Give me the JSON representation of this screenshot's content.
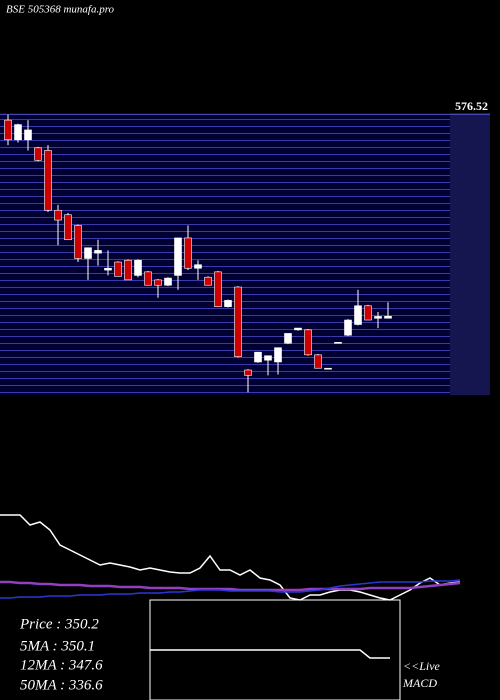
{
  "title": "BSE 505368 munafa.pro",
  "legend": [
    "Price  : 350.2",
    "5MA : 350.1",
    "12MA : 347.6",
    "50MA : 336.6"
  ],
  "macd_label": [
    "<<Live",
    "MACD"
  ],
  "chart_data": [
    {
      "type": "candlestick",
      "categories": [
        null,
        null,
        null,
        null,
        null,
        null,
        null,
        null,
        null,
        null,
        null,
        null,
        null,
        null,
        null,
        null,
        null,
        null,
        null,
        null,
        null,
        null,
        null,
        null,
        null,
        null,
        null,
        null,
        null,
        null,
        null,
        null,
        null,
        null,
        null,
        null,
        null,
        null,
        null
      ],
      "open": [
        570,
        548,
        548,
        539,
        536,
        469,
        464,
        452,
        415,
        421,
        402,
        411,
        413,
        396,
        400,
        391,
        385,
        396,
        438,
        404,
        394,
        400,
        361,
        383,
        290,
        299,
        301,
        299,
        320,
        335,
        335,
        307,
        292,
        321,
        329,
        341,
        362,
        348,
        348
      ],
      "high": [
        576,
        566,
        570,
        540,
        542,
        475,
        466,
        453,
        427,
        436,
        424,
        412,
        414,
        414,
        401,
        392,
        394,
        438,
        452,
        413,
        395,
        401,
        369,
        384,
        291,
        310,
        306,
        315,
        331,
        337,
        336,
        308,
        292,
        321,
        347,
        380,
        363,
        355,
        366
      ],
      "low": [
        542,
        545,
        536,
        524,
        467,
        430,
        436,
        411,
        391,
        407,
        396,
        395,
        391,
        394,
        385,
        371,
        384,
        380,
        402,
        391,
        385,
        361,
        360,
        304,
        265,
        298,
        284,
        285,
        319,
        334,
        306,
        292,
        292,
        321,
        328,
        340,
        346,
        337,
        348
      ],
      "close": [
        548,
        565,
        559,
        525,
        469,
        458,
        436,
        415,
        427,
        424,
        404,
        395,
        391,
        413,
        385,
        385,
        393,
        438,
        404,
        408,
        385,
        361,
        368,
        305,
        284,
        310,
        306,
        315,
        331,
        337,
        307,
        292,
        292,
        321,
        346,
        362,
        346,
        350,
        350.2
      ],
      "up_color": "#ffffff",
      "down_color": "#cc0000",
      "ylim": [
        262,
        578
      ],
      "yticks": [
        {
          "value": 576.52,
          "label": "576.52"
        }
      ]
    },
    {
      "type": "line",
      "series": [
        {
          "name": null,
          "color": "#ffffff",
          "values": [
            85,
            85,
            85,
            75,
            78,
            70,
            55,
            50,
            45,
            40,
            35,
            37,
            35,
            33,
            30,
            32,
            30,
            28,
            27,
            27,
            32,
            44,
            30,
            30,
            25,
            30,
            22,
            20,
            15,
            2,
            0,
            5,
            5,
            8,
            10,
            10,
            8,
            5,
            2,
            0,
            5,
            10,
            17,
            22,
            15,
            17,
            18
          ]
        },
        {
          "name": null,
          "color": "#9040c0",
          "values": [
            18,
            18,
            17,
            17,
            16,
            16,
            15,
            15,
            15,
            14,
            14,
            14,
            13,
            13,
            13,
            12,
            12,
            12,
            12,
            11,
            11,
            11,
            11,
            11,
            10,
            10,
            10,
            10,
            10,
            10,
            10,
            11,
            11,
            11,
            11,
            11,
            11,
            12,
            12,
            12,
            12,
            12,
            13,
            14,
            15,
            16,
            17
          ]
        },
        {
          "name": null,
          "color": "#2838d8",
          "values": [
            2,
            2,
            3,
            3,
            3,
            4,
            4,
            4,
            5,
            5,
            5,
            6,
            6,
            6,
            7,
            7,
            7,
            8,
            8,
            9,
            10,
            10,
            10,
            9,
            9,
            9,
            9,
            9,
            8,
            8,
            8,
            9,
            10,
            12,
            14,
            15,
            16,
            17,
            18,
            18,
            18,
            18,
            18,
            19,
            19,
            19,
            20
          ]
        }
      ],
      "ylim": [
        0,
        85
      ]
    },
    {
      "type": "line",
      "series": [
        {
          "name": null,
          "color": "#ffffff",
          "values": [
            0,
            0,
            0,
            0,
            0,
            0,
            0,
            0,
            0,
            0,
            0,
            0,
            0,
            0,
            0,
            0,
            0,
            0,
            0,
            0,
            0,
            0,
            -1.6,
            -1.6,
            -1.6
          ]
        }
      ],
      "ylim": [
        -10,
        10
      ]
    }
  ]
}
